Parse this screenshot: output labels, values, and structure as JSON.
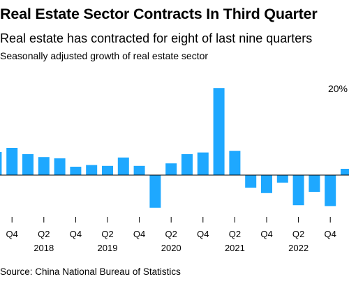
{
  "header": {
    "title": "Real Estate Sector Contracts In Third Quarter",
    "subtitle": "Real estate has contracted for eight of last nine quarters",
    "unit_label": "Seasonally adjusted growth of real estate sector"
  },
  "footer": {
    "source": "Source: China National Bureau of Statistics"
  },
  "chart_data": {
    "type": "bar",
    "categories": [
      "2017 Q3",
      "2017 Q4",
      "2018 Q1",
      "2018 Q2",
      "2018 Q3",
      "2018 Q4",
      "2019 Q1",
      "2019 Q2",
      "2019 Q3",
      "2019 Q4",
      "2020 Q1",
      "2020 Q2",
      "2020 Q3",
      "2020 Q4",
      "2021 Q1",
      "2021 Q2",
      "2021 Q3",
      "2021 Q4",
      "2022 Q1",
      "2022 Q2",
      "2022 Q3",
      "2022 Q4",
      "2023 Q1"
    ],
    "values": [
      5.5,
      6.5,
      5.0,
      4.3,
      4.0,
      2.0,
      2.4,
      2.2,
      4.2,
      2.2,
      -7.8,
      2.8,
      5.0,
      5.4,
      20.8,
      5.8,
      -3.0,
      -4.3,
      -1.8,
      -7.2,
      -4.0,
      -7.4,
      1.5
    ],
    "x_tick_labels": [
      "Q4",
      "Q2",
      "Q4",
      "Q2",
      "Q4",
      "Q2",
      "Q4",
      "Q2",
      "Q4",
      "Q2",
      "Q4"
    ],
    "x_tick_index": [
      1,
      3,
      5,
      7,
      9,
      11,
      13,
      15,
      17,
      19,
      21
    ],
    "x_year_labels": [
      "2018",
      "2019",
      "2020",
      "2021",
      "2022"
    ],
    "x_year_index": [
      3,
      7,
      11,
      15,
      19
    ],
    "y_tick_label": "20%",
    "y_tick_value": 20,
    "ylim": [
      -10,
      22
    ],
    "grid": false,
    "colors": {
      "bar": "#1ea8ff",
      "axis": "#000000"
    }
  }
}
